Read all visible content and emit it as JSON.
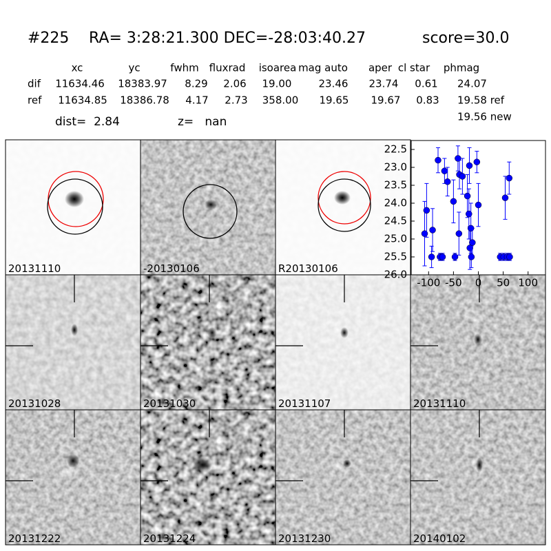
{
  "header": {
    "id": "#225",
    "coords": "RA= 3:28:21.300 DEC=-28:03:40.27",
    "score": "score=30.0"
  },
  "table": {
    "columns": [
      "xc",
      "yc",
      "fwhm",
      "fluxrad",
      "isoarea",
      "mag auto",
      "aper",
      "cl star",
      "phmag"
    ],
    "rows": [
      [
        "dif",
        "11634.46",
        "18383.97",
        "8.29",
        "2.06",
        "19.00",
        "23.46",
        "23.74",
        "0.61",
        "24.07"
      ],
      [
        "ref",
        "11634.85",
        "18386.78",
        "4.17",
        "2.73",
        "358.00",
        "19.65",
        "19.67",
        "0.83",
        "19.58 ref"
      ]
    ],
    "extra": "19.56 new"
  },
  "dist": "dist=  2.84",
  "z": "z=   nan",
  "panels": [
    {
      "label": "20131110"
    },
    {
      "label": "-20130106"
    },
    {
      "label": "R20130106"
    },
    {
      "label": "20131028"
    },
    {
      "label": "20131030"
    },
    {
      "label": "20131107"
    },
    {
      "label": "20131110"
    },
    {
      "label": "20131222"
    },
    {
      "label": "20131224"
    },
    {
      "label": "20131230"
    },
    {
      "label": "20140102"
    }
  ],
  "chart_data": {
    "type": "scatter",
    "x": [
      -108,
      -104,
      -94,
      -92,
      -81,
      -77,
      -72,
      -68,
      -62,
      -50,
      -47,
      -41,
      -39,
      -38,
      -32,
      -22,
      -19,
      -18,
      -17,
      -15,
      -14,
      -12,
      -3,
      0,
      44,
      51,
      54,
      58,
      62,
      63
    ],
    "values": [
      24.85,
      24.2,
      25.5,
      24.75,
      22.8,
      25.5,
      25.5,
      23.1,
      23.4,
      23.95,
      25.5,
      22.75,
      24.85,
      23.2,
      23.25,
      23.8,
      24.3,
      22.95,
      25.25,
      24.7,
      25.5,
      25.1,
      22.85,
      24.05,
      25.5,
      25.5,
      23.85,
      25.5,
      23.3,
      25.5
    ],
    "errors": [
      0.9,
      0.75,
      0.3,
      0.6,
      0.35,
      0.1,
      0.1,
      0.35,
      0.4,
      0.6,
      0.1,
      0.35,
      0.6,
      0.4,
      0.5,
      0.6,
      0.7,
      0.5,
      0.6,
      0.7,
      0.3,
      0.4,
      0.3,
      0.6,
      0.1,
      0.1,
      0.6,
      0.1,
      0.45,
      0.1
    ],
    "color": "#0000ff",
    "xlim": [
      -135,
      135
    ],
    "ylim": [
      26.0,
      22.25
    ],
    "xticks": [
      -100,
      -50,
      0,
      50,
      100
    ],
    "yticks": [
      22.5,
      {
        "value": 23,
        "label": "23.0"
      },
      23.5,
      {
        "value": 24,
        "label": "24.0"
      },
      24.5,
      {
        "value": 25,
        "label": "25.0"
      },
      25.5,
      {
        "value": 26,
        "label": "26.0"
      }
    ]
  }
}
